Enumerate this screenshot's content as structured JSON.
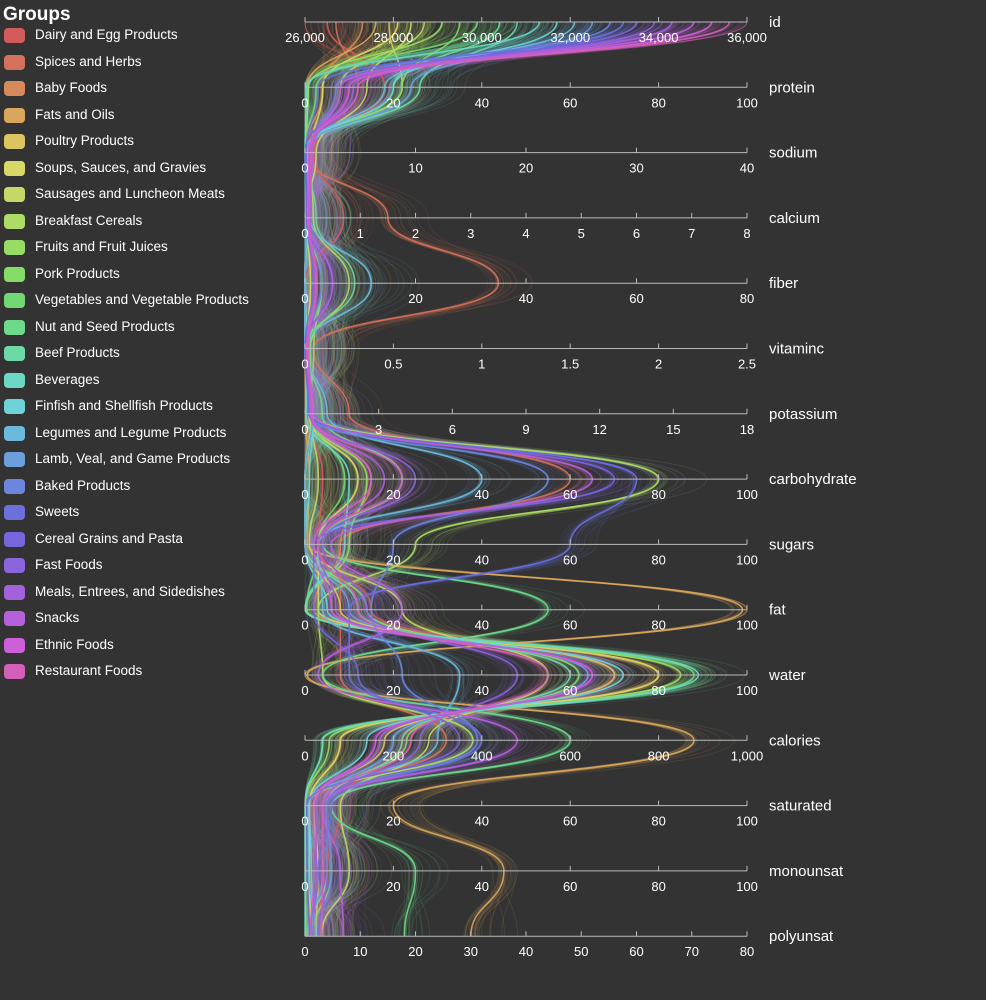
{
  "legend": {
    "title": "Groups",
    "items": [
      {
        "label": "Dairy and Egg Products",
        "color": "#d25c5c"
      },
      {
        "label": "Spices and Herbs",
        "color": "#d3715a"
      },
      {
        "label": "Baby Foods",
        "color": "#d68a5a"
      },
      {
        "label": "Fats and Oils",
        "color": "#d9a65e"
      },
      {
        "label": "Poultry Products",
        "color": "#dcc462"
      },
      {
        "label": "Soups, Sauces, and Gravies",
        "color": "#d8d866"
      },
      {
        "label": "Sausages and Luncheon Meats",
        "color": "#c3d866"
      },
      {
        "label": "Breakfast Cereals",
        "color": "#aedb65"
      },
      {
        "label": "Fruits and Fruit Juices",
        "color": "#98dc64"
      },
      {
        "label": "Pork Products",
        "color": "#84dc66"
      },
      {
        "label": "Vegetables and Vegetable Products",
        "color": "#72d873"
      },
      {
        "label": "Nut and Seed Products",
        "color": "#6ed98b"
      },
      {
        "label": "Beef Products",
        "color": "#6cd9a6"
      },
      {
        "label": "Beverages",
        "color": "#6cd8c3"
      },
      {
        "label": "Finfish and Shellfish Products",
        "color": "#6dd3d8"
      },
      {
        "label": "Legumes and Legume Products",
        "color": "#6cb9dc"
      },
      {
        "label": "Lamb, Veal, and Game Products",
        "color": "#6c9fdc"
      },
      {
        "label": "Baked Products",
        "color": "#6b86dc"
      },
      {
        "label": "Sweets",
        "color": "#6b70dc"
      },
      {
        "label": "Cereal Grains and Pasta",
        "color": "#7566dc"
      },
      {
        "label": "Fast Foods",
        "color": "#8c64dc"
      },
      {
        "label": "Meals, Entrees, and Sidedishes",
        "color": "#a262dc"
      },
      {
        "label": "Snacks",
        "color": "#b760dc"
      },
      {
        "label": "Ethnic Foods",
        "color": "#cd5fd8"
      },
      {
        "label": "Restaurant Foods",
        "color": "#d35fb8"
      }
    ]
  },
  "chart_data": {
    "type": "parallel-coordinates",
    "orientation": "horizontal-axes-stacked",
    "grid": false,
    "legend_placement": "left",
    "axes": [
      {
        "name": "id",
        "range": [
          26000,
          36000
        ],
        "ticks": [
          "26,000",
          "28,000",
          "30,000",
          "32,000",
          "34,000",
          "36,000"
        ]
      },
      {
        "name": "protein",
        "range": [
          0,
          100
        ],
        "ticks": [
          "0",
          "20",
          "40",
          "60",
          "80",
          "100"
        ]
      },
      {
        "name": "sodium",
        "range": [
          0,
          40
        ],
        "ticks": [
          "0",
          "10",
          "20",
          "30",
          "40"
        ]
      },
      {
        "name": "calcium",
        "range": [
          0,
          8
        ],
        "ticks": [
          "0",
          "1",
          "2",
          "3",
          "4",
          "5",
          "6",
          "7",
          "8"
        ]
      },
      {
        "name": "fiber",
        "range": [
          0,
          80
        ],
        "ticks": [
          "0",
          "20",
          "40",
          "60",
          "80"
        ]
      },
      {
        "name": "vitaminc",
        "range": [
          0,
          2.5
        ],
        "ticks": [
          "0",
          "0.5",
          "1",
          "1.5",
          "2",
          "2.5"
        ]
      },
      {
        "name": "potassium",
        "range": [
          0,
          18
        ],
        "ticks": [
          "0",
          "3",
          "6",
          "9",
          "12",
          "15",
          "18"
        ]
      },
      {
        "name": "carbohydrate",
        "range": [
          0,
          100
        ],
        "ticks": [
          "0",
          "20",
          "40",
          "60",
          "80",
          "100"
        ]
      },
      {
        "name": "sugars",
        "range": [
          0,
          100
        ],
        "ticks": [
          "0",
          "20",
          "40",
          "60",
          "80",
          "100"
        ]
      },
      {
        "name": "fat",
        "range": [
          0,
          100
        ],
        "ticks": [
          "0",
          "20",
          "40",
          "60",
          "80",
          "100"
        ]
      },
      {
        "name": "water",
        "range": [
          0,
          100
        ],
        "ticks": [
          "0",
          "20",
          "40",
          "60",
          "80",
          "100"
        ]
      },
      {
        "name": "calories",
        "range": [
          0,
          1000
        ],
        "ticks": [
          "0",
          "200",
          "400",
          "600",
          "800",
          "1,000"
        ]
      },
      {
        "name": "saturated",
        "range": [
          0,
          100
        ],
        "ticks": [
          "0",
          "20",
          "40",
          "60",
          "80",
          "100"
        ]
      },
      {
        "name": "monounsat",
        "range": [
          0,
          100
        ],
        "ticks": [
          "0",
          "20",
          "40",
          "60",
          "80",
          "100"
        ]
      },
      {
        "name": "polyunsat",
        "range": [
          0,
          80
        ],
        "ticks": [
          "0",
          "10",
          "20",
          "30",
          "40",
          "50",
          "60",
          "70",
          "80"
        ]
      }
    ],
    "series": [
      {
        "group": "Dairy and Egg Products",
        "values": [
          26500,
          18,
          0.8,
          0.7,
          0,
          0.01,
          0.2,
          4,
          3,
          15,
          70,
          220,
          8,
          5,
          1
        ]
      },
      {
        "group": "Spices and Herbs",
        "values": [
          26700,
          12,
          0.1,
          1.5,
          35,
          0.05,
          1.8,
          60,
          8,
          8,
          8,
          320,
          2,
          3,
          3
        ]
      },
      {
        "group": "Baby Foods",
        "values": [
          27300,
          4,
          0.05,
          0.1,
          1,
          0.02,
          0.2,
          15,
          8,
          2,
          80,
          80,
          1,
          1,
          0.5
        ]
      },
      {
        "group": "Fats and Oils",
        "values": [
          27600,
          0.5,
          0.2,
          0.02,
          0,
          0,
          0.02,
          1,
          0.5,
          99,
          0.5,
          880,
          20,
          45,
          30
        ]
      },
      {
        "group": "Poultry Products",
        "values": [
          27900,
          22,
          0.08,
          0.02,
          0,
          0,
          0.25,
          0,
          0,
          8,
          70,
          180,
          2,
          3,
          2
        ]
      },
      {
        "group": "Soups, Sauces, and Gravies",
        "values": [
          28100,
          4,
          0.6,
          0.03,
          1,
          0.01,
          0.15,
          12,
          3,
          3,
          80,
          80,
          1,
          1,
          1
        ]
      },
      {
        "group": "Sausages and Luncheon Meats",
        "values": [
          28400,
          14,
          1.0,
          0.02,
          0,
          0.01,
          0.25,
          3,
          1,
          22,
          55,
          280,
          8,
          10,
          3
        ]
      },
      {
        "group": "Breakfast Cereals",
        "values": [
          28700,
          8,
          0.5,
          0.15,
          8,
          0.03,
          0.3,
          80,
          25,
          3,
          4,
          380,
          0.5,
          1,
          1
        ]
      },
      {
        "group": "Fruits and Fruit Juices",
        "values": [
          29100,
          0.8,
          0.01,
          0.02,
          3,
          0.05,
          0.2,
          14,
          10,
          0.3,
          85,
          55,
          0.05,
          0.05,
          0.1
        ]
      },
      {
        "group": "Pork Products",
        "values": [
          29500,
          22,
          0.07,
          0.02,
          0,
          0,
          0.35,
          0,
          0,
          14,
          62,
          230,
          5,
          6,
          1.5
        ]
      },
      {
        "group": "Vegetables and Vegetable Products",
        "values": [
          29900,
          2.5,
          0.03,
          0.05,
          3,
          0.03,
          0.3,
          9,
          3,
          0.4,
          88,
          40,
          0.1,
          0.1,
          0.2
        ]
      },
      {
        "group": "Nut and Seed Products",
        "values": [
          30400,
          20,
          0.05,
          0.2,
          9,
          0.01,
          0.7,
          22,
          4,
          55,
          4,
          600,
          6,
          25,
          18
        ]
      },
      {
        "group": "Beef Products",
        "values": [
          30800,
          26,
          0.06,
          0.02,
          0,
          0,
          0.35,
          0,
          0,
          12,
          60,
          220,
          5,
          5,
          0.5
        ]
      },
      {
        "group": "Beverages",
        "values": [
          31300,
          0.3,
          0.01,
          0.01,
          0,
          0.01,
          0.05,
          10,
          9,
          0.1,
          89,
          40,
          0.02,
          0.02,
          0.02
        ]
      },
      {
        "group": "Finfish and Shellfish Products",
        "values": [
          31700,
          20,
          0.2,
          0.05,
          0,
          0,
          0.35,
          1,
          0,
          5,
          72,
          140,
          1,
          1.5,
          1.5
        ]
      },
      {
        "group": "Legumes and Legume Products",
        "values": [
          32100,
          18,
          0.05,
          0.1,
          12,
          0.01,
          0.9,
          40,
          3,
          4,
          35,
          300,
          0.6,
          0.8,
          2
        ]
      },
      {
        "group": "Lamb, Veal, and Game Products",
        "values": [
          32500,
          24,
          0.07,
          0.02,
          0,
          0,
          0.3,
          0,
          0,
          10,
          64,
          200,
          4,
          4,
          0.8
        ]
      },
      {
        "group": "Baked Products",
        "values": [
          32900,
          7,
          0.45,
          0.08,
          3,
          0,
          0.15,
          55,
          20,
          15,
          22,
          390,
          5,
          6,
          2.5
        ]
      },
      {
        "group": "Sweets",
        "values": [
          33200,
          3,
          0.1,
          0.04,
          1.5,
          0,
          0.15,
          75,
          60,
          10,
          10,
          400,
          6,
          3,
          1
        ]
      },
      {
        "group": "Cereal Grains and Pasta",
        "values": [
          33500,
          10,
          0.01,
          0.03,
          5,
          0,
          0.25,
          70,
          2,
          2,
          12,
          350,
          0.4,
          0.5,
          0.8
        ]
      },
      {
        "group": "Fast Foods",
        "values": [
          33900,
          11,
          0.55,
          0.1,
          2,
          0.01,
          0.25,
          25,
          4,
          14,
          48,
          260,
          5,
          5,
          2.5
        ]
      },
      {
        "group": "Meals, Entrees, and Sidedishes",
        "values": [
          34300,
          8,
          0.45,
          0.06,
          2,
          0.01,
          0.2,
          18,
          3,
          7,
          65,
          170,
          2.5,
          2.5,
          1.5
        ]
      },
      {
        "group": "Snacks",
        "values": [
          34800,
          8,
          0.7,
          0.05,
          5,
          0.01,
          0.35,
          65,
          6,
          22,
          3,
          480,
          4,
          8,
          7
        ]
      },
      {
        "group": "Ethnic Foods",
        "values": [
          35200,
          12,
          0.3,
          0.05,
          2,
          0.02,
          0.3,
          15,
          2,
          6,
          65,
          160,
          2,
          2,
          1
        ]
      },
      {
        "group": "Restaurant Foods",
        "values": [
          35600,
          10,
          0.5,
          0.08,
          2,
          0.01,
          0.25,
          22,
          3,
          12,
          55,
          240,
          4,
          4,
          3
        ]
      }
    ]
  }
}
